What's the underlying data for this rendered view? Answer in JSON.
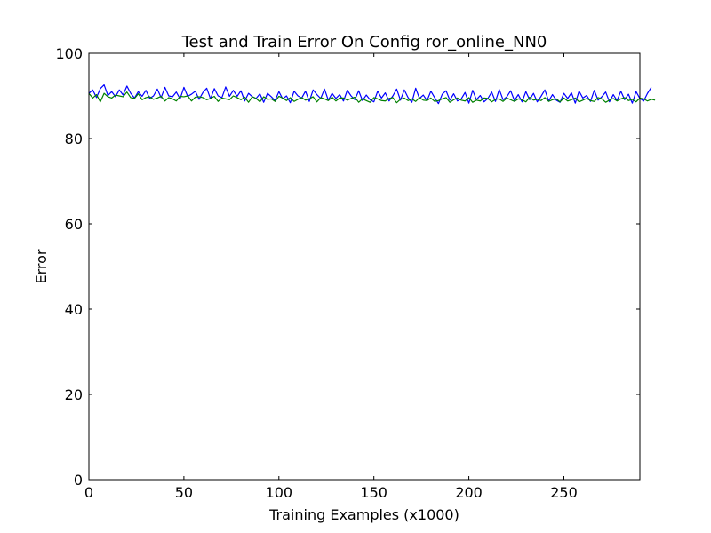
{
  "chart_data": {
    "type": "line",
    "title": "Test and Train Error On Config ror_online_NN0",
    "xlabel": "Training Examples (x1000)",
    "ylabel": "Error",
    "xlim": [
      0,
      290
    ],
    "ylim": [
      0,
      100
    ],
    "xticks": [
      0,
      50,
      100,
      150,
      200,
      250
    ],
    "yticks": [
      0,
      20,
      40,
      60,
      80,
      100
    ],
    "grid": false,
    "legend": "none",
    "x_start": 0,
    "x_step": 2,
    "series": [
      {
        "color": "#0000ff",
        "values": [
          90.6,
          91.4,
          89.6,
          91.7,
          92.6,
          90.1,
          91.0,
          89.8,
          91.4,
          90.2,
          92.3,
          90.6,
          89.5,
          91.0,
          89.9,
          91.3,
          89.4,
          90.0,
          91.6,
          89.6,
          92.0,
          90.0,
          89.8,
          90.9,
          89.3,
          92.0,
          89.9,
          90.4,
          91.1,
          89.2,
          90.8,
          91.8,
          89.3,
          91.7,
          90.0,
          89.6,
          92.1,
          89.9,
          91.3,
          89.9,
          91.2,
          88.8,
          90.6,
          89.8,
          89.4,
          90.5,
          88.5,
          90.6,
          89.8,
          88.9,
          91.0,
          89.3,
          90.0,
          88.4,
          91.1,
          90.0,
          89.5,
          91.1,
          88.7,
          91.4,
          90.3,
          89.4,
          91.6,
          89.0,
          90.6,
          89.4,
          90.3,
          88.8,
          91.3,
          90.0,
          89.1,
          91.2,
          88.9,
          90.2,
          89.1,
          88.6,
          91.1,
          89.5,
          90.7,
          88.8,
          90.0,
          91.6,
          89.0,
          91.4,
          89.6,
          88.5,
          91.8,
          89.4,
          90.2,
          88.9,
          91.1,
          89.6,
          88.2,
          90.4,
          91.2,
          89.0,
          90.5,
          88.8,
          89.3,
          90.8,
          88.3,
          91.3,
          89.1,
          90.1,
          88.6,
          89.4,
          90.9,
          88.7,
          91.5,
          89.1,
          89.8,
          91.2,
          88.9,
          90.3,
          88.6,
          91.0,
          89.1,
          90.6,
          88.6,
          89.9,
          91.4,
          88.8,
          90.3,
          89.0,
          88.5,
          90.6,
          89.4,
          90.7,
          88.3,
          91.1,
          89.5,
          90.1,
          88.7,
          91.3,
          89.0,
          89.8,
          90.9,
          88.6,
          90.3,
          88.9,
          91.1,
          89.1,
          90.4,
          88.3,
          91.0,
          89.4,
          88.8,
          90.6,
          92.0
        ]
      },
      {
        "color": "#008000",
        "values": [
          90.6,
          89.5,
          90.3,
          88.6,
          90.6,
          89.8,
          89.5,
          90.2,
          90.0,
          89.8,
          90.9,
          89.6,
          89.4,
          90.5,
          89.1,
          89.6,
          89.8,
          89.2,
          89.5,
          89.9,
          88.8,
          89.6,
          89.3,
          88.8,
          89.9,
          89.8,
          90.0,
          88.8,
          89.7,
          89.8,
          89.6,
          89.1,
          89.4,
          89.9,
          88.7,
          89.5,
          89.3,
          89.1,
          90.0,
          89.6,
          89.1,
          89.7,
          88.5,
          89.8,
          89.4,
          88.6,
          89.8,
          89.2,
          89.3,
          88.7,
          89.9,
          89.5,
          88.9,
          89.6,
          88.7,
          89.2,
          89.6,
          89.0,
          89.3,
          89.8,
          88.6,
          89.6,
          89.3,
          88.9,
          89.7,
          88.8,
          89.5,
          89.5,
          89.0,
          89.4,
          89.7,
          88.5,
          89.3,
          88.9,
          88.5,
          89.6,
          89.3,
          88.9,
          88.8,
          89.4,
          89.6,
          88.4,
          89.2,
          89.5,
          88.9,
          89.3,
          88.7,
          89.6,
          89.0,
          88.9,
          89.5,
          88.7,
          88.9,
          89.3,
          89.6,
          88.5,
          89.1,
          89.5,
          89.0,
          88.8,
          89.6,
          88.5,
          89.0,
          88.8,
          89.5,
          89.4,
          88.6,
          89.2,
          89.3,
          88.7,
          89.5,
          89.1,
          88.7,
          89.3,
          89.1,
          88.6,
          89.7,
          89.0,
          89.2,
          88.9,
          89.6,
          88.7,
          89.1,
          89.3,
          88.6,
          89.5,
          88.8,
          89.1,
          89.5,
          88.6,
          89.0,
          89.4,
          88.9,
          88.7,
          89.6,
          89.3,
          88.5,
          89.0,
          89.4,
          88.8,
          89.3,
          89.6,
          88.9,
          89.2,
          88.6,
          89.5,
          89.3,
          88.8,
          89.2,
          89.0
        ]
      }
    ]
  }
}
